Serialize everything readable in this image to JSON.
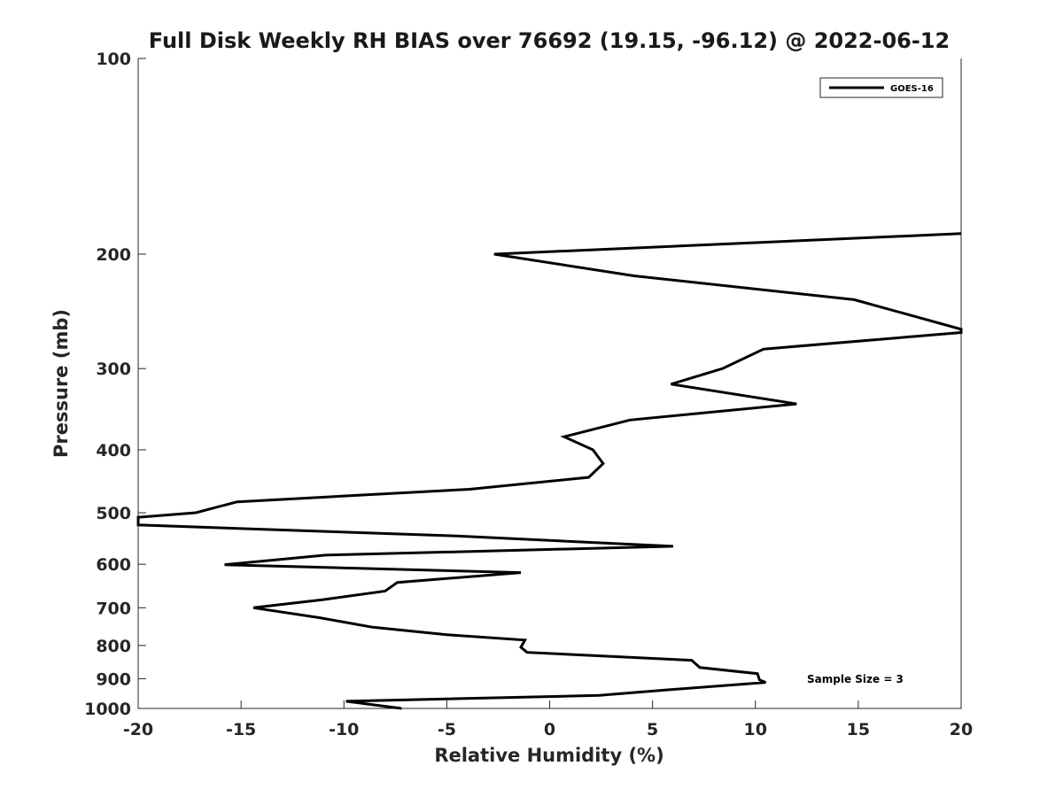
{
  "chart_data": {
    "type": "line",
    "title": "Full Disk Weekly RH BIAS over 76692 (19.15, -96.12) @ 2022-06-12",
    "xlabel": "Relative Humidity (%)",
    "ylabel": "Pressure (mb)",
    "xlim": [
      -20,
      20
    ],
    "ylim": [
      100,
      1000
    ],
    "yscale": "log",
    "yreversed": true,
    "grid": false,
    "legend_position": "top-right",
    "x_ticks": [
      -20,
      -15,
      -10,
      -5,
      0,
      5,
      10,
      15,
      20
    ],
    "x_tick_labels": [
      "-20",
      "-15",
      "-10",
      "-5",
      "0",
      "5",
      "10",
      "15",
      "20"
    ],
    "y_ticks": [
      100,
      200,
      300,
      400,
      500,
      600,
      700,
      800,
      900,
      1000
    ],
    "y_tick_labels": [
      "100",
      "200",
      "300",
      "400",
      "500",
      "600",
      "700",
      "800",
      "900",
      "1000"
    ],
    "annotation": "Sample Size = 3",
    "series": [
      {
        "name": "GOES-16",
        "color": "#000000",
        "points": [
          {
            "x": 20.0,
            "y": 186
          },
          {
            "x": -2.7,
            "y": 200
          },
          {
            "x": 4.1,
            "y": 216
          },
          {
            "x": 14.8,
            "y": 235
          },
          {
            "x": 20.0,
            "y": 261
          },
          {
            "x": 20.0,
            "y": 264
          },
          {
            "x": 10.4,
            "y": 280
          },
          {
            "x": 8.4,
            "y": 300
          },
          {
            "x": 5.9,
            "y": 317
          },
          {
            "x": 12.0,
            "y": 340
          },
          {
            "x": 3.9,
            "y": 360
          },
          {
            "x": 0.7,
            "y": 382
          },
          {
            "x": 2.1,
            "y": 400
          },
          {
            "x": 2.6,
            "y": 420
          },
          {
            "x": 1.9,
            "y": 441
          },
          {
            "x": -3.9,
            "y": 460
          },
          {
            "x": -15.2,
            "y": 481
          },
          {
            "x": -17.2,
            "y": 500
          },
          {
            "x": -20.0,
            "y": 508
          },
          {
            "x": -20.0,
            "y": 522
          },
          {
            "x": -4.5,
            "y": 543
          },
          {
            "x": 6.0,
            "y": 563
          },
          {
            "x": -10.9,
            "y": 581
          },
          {
            "x": -15.8,
            "y": 601
          },
          {
            "x": -1.4,
            "y": 618
          },
          {
            "x": -7.4,
            "y": 640
          },
          {
            "x": -8.0,
            "y": 660
          },
          {
            "x": -11.0,
            "y": 680
          },
          {
            "x": -14.4,
            "y": 700
          },
          {
            "x": -11.2,
            "y": 725
          },
          {
            "x": -8.6,
            "y": 750
          },
          {
            "x": -5.0,
            "y": 770
          },
          {
            "x": -1.2,
            "y": 785
          },
          {
            "x": -1.4,
            "y": 805
          },
          {
            "x": -1.1,
            "y": 820
          },
          {
            "x": 6.9,
            "y": 843
          },
          {
            "x": 7.3,
            "y": 865
          },
          {
            "x": 10.1,
            "y": 884
          },
          {
            "x": 10.2,
            "y": 904
          },
          {
            "x": 10.5,
            "y": 912
          },
          {
            "x": 5.8,
            "y": 936
          },
          {
            "x": 2.4,
            "y": 955
          },
          {
            "x": -9.9,
            "y": 975
          },
          {
            "x": -7.2,
            "y": 1000
          }
        ]
      }
    ]
  }
}
